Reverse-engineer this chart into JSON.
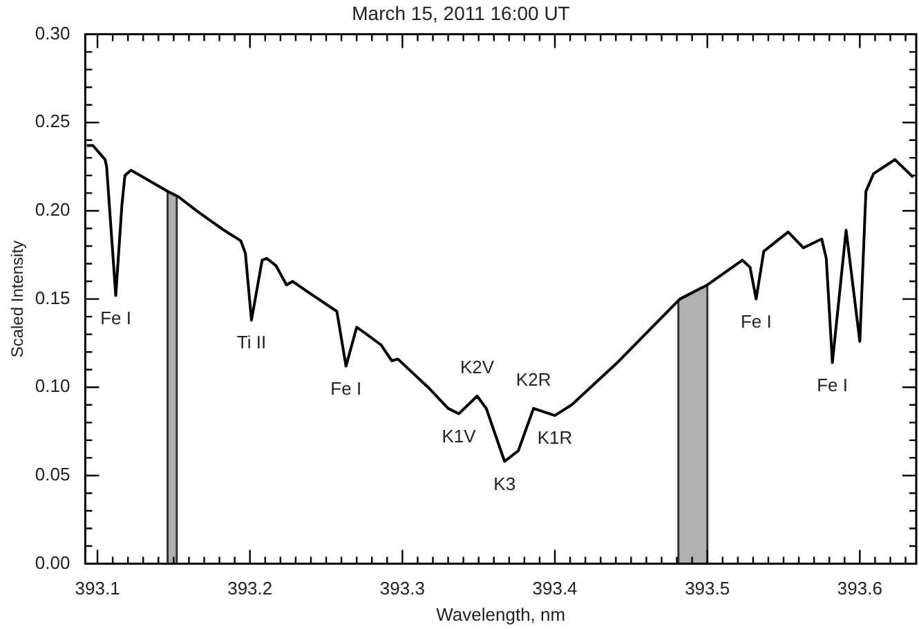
{
  "chart_data": {
    "type": "line",
    "title": "March 15, 2011 16:00 UT",
    "xlabel": "Wavelength, nm",
    "ylabel": "Scaled Intensity",
    "x": [
      393.093,
      393.097,
      393.105,
      393.106,
      393.112,
      393.116,
      393.118,
      393.122,
      393.146,
      393.153,
      393.165,
      393.183,
      393.194,
      393.197,
      393.201,
      393.208,
      393.211,
      393.217,
      393.224,
      393.228,
      393.238,
      393.257,
      393.263,
      393.27,
      393.275,
      393.286,
      393.293,
      393.297,
      393.318,
      393.33,
      393.337,
      393.349,
      393.355,
      393.367,
      393.376,
      393.386,
      393.4,
      393.411,
      393.441,
      393.466,
      393.482,
      393.5,
      393.523,
      393.528,
      393.532,
      393.537,
      393.553,
      393.563,
      393.575,
      393.578,
      393.582,
      393.591,
      393.6,
      393.604,
      393.609,
      393.623,
      393.635
    ],
    "series": [
      {
        "color": "#000000",
        "values": [
          0.237,
          0.237,
          0.229,
          0.225,
          0.152,
          0.203,
          0.22,
          0.223,
          0.211,
          0.208,
          0.2,
          0.189,
          0.183,
          0.176,
          0.138,
          0.172,
          0.173,
          0.169,
          0.158,
          0.16,
          0.154,
          0.143,
          0.112,
          0.134,
          0.131,
          0.124,
          0.115,
          0.116,
          0.099,
          0.088,
          0.085,
          0.095,
          0.088,
          0.058,
          0.064,
          0.088,
          0.084,
          0.09,
          0.114,
          0.136,
          0.15,
          0.158,
          0.172,
          0.168,
          0.15,
          0.177,
          0.188,
          0.179,
          0.184,
          0.173,
          0.114,
          0.189,
          0.126,
          0.211,
          0.221,
          0.229,
          0.219
        ]
      }
    ],
    "bands": [
      {
        "axis": "x",
        "from": 393.146,
        "to": 393.152,
        "color": "#b0b0b0"
      },
      {
        "axis": "x",
        "from": 393.481,
        "to": 393.5,
        "color": "#b0b0b0"
      }
    ],
    "annotations": [
      {
        "text": "Fe I",
        "x": 393.112,
        "y": 0.152
      },
      {
        "text": "Ti II",
        "x": 393.201,
        "y": 0.138
      },
      {
        "text": "Fe I",
        "x": 393.263,
        "y": 0.112
      },
      {
        "text": "K2V",
        "x": 393.349,
        "y": 0.095
      },
      {
        "text": "K2R",
        "x": 393.386,
        "y": 0.088
      },
      {
        "text": "K1V",
        "x": 393.337,
        "y": 0.085
      },
      {
        "text": "K1R",
        "x": 393.4,
        "y": 0.084
      },
      {
        "text": "K3",
        "x": 393.367,
        "y": 0.058
      },
      {
        "text": "Fe I",
        "x": 393.532,
        "y": 0.15
      },
      {
        "text": "Fe I",
        "x": 393.582,
        "y": 0.114
      }
    ],
    "xlim": [
      393.092,
      393.637
    ],
    "xticks": [
      393.1,
      {
        "value": 393.11,
        "label": null
      },
      {
        "value": 393.12,
        "label": null
      },
      {
        "value": 393.13,
        "label": null
      },
      {
        "value": 393.14,
        "label": null
      },
      {
        "value": 393.15,
        "label": null
      },
      {
        "value": 393.16,
        "label": null
      },
      {
        "value": 393.17,
        "label": null
      },
      {
        "value": 393.18,
        "label": null
      },
      {
        "value": 393.19,
        "label": null
      },
      393.2,
      {
        "value": 393.21,
        "label": null
      },
      {
        "value": 393.22,
        "label": null
      },
      {
        "value": 393.23,
        "label": null
      },
      {
        "value": 393.24,
        "label": null
      },
      {
        "value": 393.25,
        "label": null
      },
      {
        "value": 393.26,
        "label": null
      },
      {
        "value": 393.27,
        "label": null
      },
      {
        "value": 393.28,
        "label": null
      },
      {
        "value": 393.29,
        "label": null
      },
      393.3,
      {
        "value": 393.31,
        "label": null
      },
      {
        "value": 393.32,
        "label": null
      },
      {
        "value": 393.33,
        "label": null
      },
      {
        "value": 393.34,
        "label": null
      },
      {
        "value": 393.35,
        "label": null
      },
      {
        "value": 393.36,
        "label": null
      },
      {
        "value": 393.37,
        "label": null
      },
      {
        "value": 393.38,
        "label": null
      },
      {
        "value": 393.39,
        "label": null
      },
      393.4,
      {
        "value": 393.41,
        "label": null
      },
      {
        "value": 393.42,
        "label": null
      },
      {
        "value": 393.43,
        "label": null
      },
      {
        "value": 393.44,
        "label": null
      },
      {
        "value": 393.45,
        "label": null
      },
      {
        "value": 393.46,
        "label": null
      },
      {
        "value": 393.47,
        "label": null
      },
      {
        "value": 393.48,
        "label": null
      },
      {
        "value": 393.49,
        "label": null
      },
      393.5,
      {
        "value": 393.51,
        "label": null
      },
      {
        "value": 393.52,
        "label": null
      },
      {
        "value": 393.53,
        "label": null
      },
      {
        "value": 393.54,
        "label": null
      },
      {
        "value": 393.55,
        "label": null
      },
      {
        "value": 393.56,
        "label": null
      },
      {
        "value": 393.57,
        "label": null
      },
      {
        "value": 393.58,
        "label": null
      },
      {
        "value": 393.59,
        "label": null
      },
      393.6,
      {
        "value": 393.61,
        "label": null
      },
      {
        "value": 393.62,
        "label": null
      },
      {
        "value": 393.63,
        "label": null
      }
    ],
    "ylim": [
      0,
      0.3
    ],
    "yticks": [
      {
        "value": 0,
        "label": "0.00"
      },
      {
        "value": 0.01,
        "label": null
      },
      {
        "value": 0.02,
        "label": null
      },
      {
        "value": 0.03,
        "label": null
      },
      {
        "value": 0.04,
        "label": null
      },
      {
        "value": 0.05,
        "label": "0.05"
      },
      {
        "value": 0.06,
        "label": null
      },
      {
        "value": 0.07,
        "label": null
      },
      {
        "value": 0.08,
        "label": null
      },
      {
        "value": 0.09,
        "label": null
      },
      {
        "value": 0.1,
        "label": "0.10"
      },
      {
        "value": 0.11,
        "label": null
      },
      {
        "value": 0.12,
        "label": null
      },
      {
        "value": 0.13,
        "label": null
      },
      {
        "value": 0.14,
        "label": null
      },
      {
        "value": 0.15,
        "label": "0.15"
      },
      {
        "value": 0.16,
        "label": null
      },
      {
        "value": 0.17,
        "label": null
      },
      {
        "value": 0.18,
        "label": null
      },
      {
        "value": 0.19,
        "label": null
      },
      {
        "value": 0.2,
        "label": "0.20"
      },
      {
        "value": 0.21,
        "label": null
      },
      {
        "value": 0.22,
        "label": null
      },
      {
        "value": 0.23,
        "label": null
      },
      {
        "value": 0.24,
        "label": null
      },
      {
        "value": 0.25,
        "label": "0.25"
      },
      {
        "value": 0.26,
        "label": null
      },
      {
        "value": 0.27,
        "label": null
      },
      {
        "value": 0.28,
        "label": null
      },
      {
        "value": 0.29,
        "label": null
      },
      {
        "value": 0.3,
        "label": "0.30"
      }
    ],
    "grid": false,
    "legend": false
  }
}
